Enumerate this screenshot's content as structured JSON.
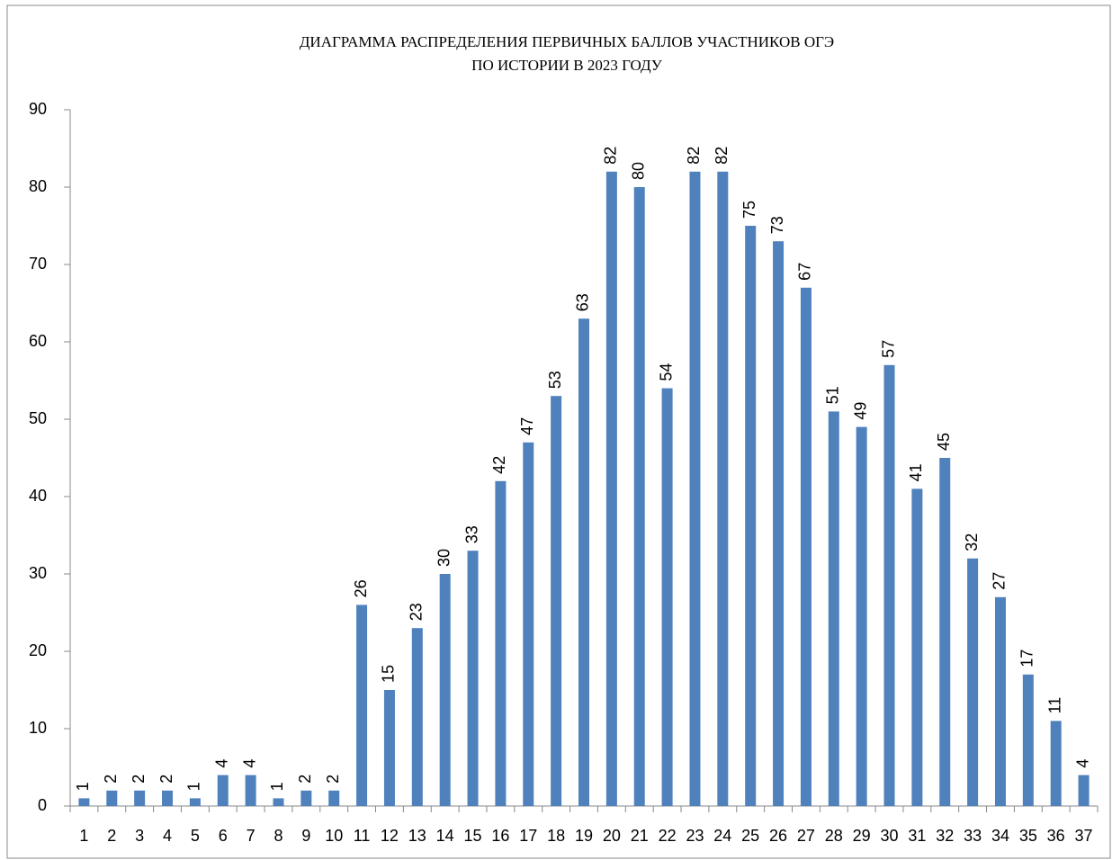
{
  "chart_data": {
    "type": "bar",
    "title": [
      "ДИАГРАММА РАСПРЕДЕЛЕНИЯ ПЕРВИЧНЫХ БАЛЛОВ УЧАСТНИКОВ ОГЭ",
      "ПО ИСТОРИИ В 2023 ГОДУ"
    ],
    "categories": [
      "1",
      "2",
      "3",
      "4",
      "5",
      "6",
      "7",
      "8",
      "9",
      "10",
      "11",
      "12",
      "13",
      "14",
      "15",
      "16",
      "17",
      "18",
      "19",
      "20",
      "21",
      "22",
      "23",
      "24",
      "25",
      "26",
      "27",
      "28",
      "29",
      "30",
      "31",
      "32",
      "33",
      "34",
      "35",
      "36",
      "37"
    ],
    "values": [
      1,
      2,
      2,
      2,
      1,
      4,
      4,
      1,
      2,
      2,
      26,
      15,
      23,
      30,
      33,
      42,
      47,
      53,
      63,
      82,
      80,
      54,
      82,
      82,
      75,
      73,
      67,
      51,
      49,
      57,
      41,
      45,
      32,
      27,
      17,
      11,
      4
    ],
    "color": "#4f81bd",
    "ylim": [
      0,
      90
    ],
    "yticks": [
      0,
      10,
      20,
      30,
      40,
      50,
      60,
      70,
      80,
      90
    ],
    "grid": false
  }
}
